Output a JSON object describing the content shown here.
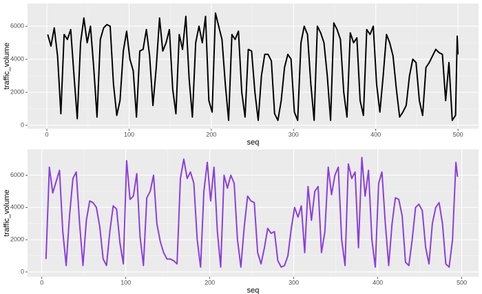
{
  "chart_data": [
    {
      "type": "line",
      "xlabel": "seq",
      "ylabel": "traffic_volume",
      "color": "#000000",
      "grid": true,
      "xlim": [
        -23.5,
        525
      ],
      "ylim": [
        -210,
        7380
      ],
      "xticks": [
        0,
        100,
        200,
        300,
        400,
        500
      ],
      "yticks": [
        0,
        2000,
        4000,
        6000
      ],
      "x": [
        1,
        5,
        9,
        13,
        17,
        21,
        25,
        29,
        33,
        37,
        41,
        45,
        49,
        53,
        57,
        61,
        65,
        69,
        73,
        77,
        81,
        85,
        89,
        93,
        97,
        101,
        105,
        109,
        113,
        117,
        121,
        125,
        129,
        133,
        137,
        141,
        145,
        149,
        153,
        157,
        161,
        165,
        169,
        173,
        177,
        181,
        185,
        189,
        193,
        197,
        201,
        205,
        209,
        213,
        217,
        221,
        225,
        229,
        233,
        237,
        241,
        245,
        249,
        253,
        257,
        261,
        265,
        269,
        273,
        277,
        281,
        285,
        289,
        293,
        297,
        301,
        305,
        309,
        313,
        317,
        321,
        325,
        329,
        333,
        337,
        341,
        345,
        349,
        353,
        357,
        361,
        365,
        369,
        373,
        377,
        381,
        385,
        389,
        393,
        397,
        401,
        405,
        409,
        413,
        417,
        421,
        425,
        429,
        433,
        437,
        441,
        445,
        449,
        453,
        457,
        461,
        465,
        469,
        473,
        477,
        481,
        485,
        489,
        493,
        497,
        499,
        500
      ],
      "values": [
        5500,
        4800,
        5900,
        4200,
        700,
        5500,
        5200,
        5800,
        3000,
        400,
        5000,
        6500,
        5000,
        6000,
        3500,
        500,
        5200,
        5900,
        6100,
        6000,
        2500,
        600,
        1500,
        4500,
        5700,
        4000,
        3300,
        500,
        4500,
        4600,
        5800,
        4200,
        1200,
        3500,
        6500,
        4500,
        5000,
        5800,
        2200,
        700,
        5500,
        4600,
        6600,
        2800,
        500,
        5000,
        6000,
        5000,
        6600,
        1500,
        800,
        6800,
        6000,
        5200,
        2500,
        300,
        5500,
        5200,
        5700,
        2000,
        500,
        4600,
        4500,
        2000,
        300,
        3000,
        4300,
        4300,
        3900,
        700,
        300,
        1500,
        3500,
        4300,
        4000,
        800,
        300,
        5000,
        6000,
        5500,
        2500,
        300,
        6000,
        5600,
        5000,
        3000,
        300,
        6200,
        5800,
        5200,
        2000,
        500,
        5600,
        5000,
        5300,
        1500,
        600,
        5800,
        5500,
        6000,
        2500,
        800,
        3000,
        5500,
        5000,
        4200,
        2200,
        500,
        800,
        1200,
        3000,
        4000,
        3800,
        1500,
        600,
        3500,
        3800,
        4200,
        4600,
        4400,
        4300,
        1500,
        3800,
        300,
        600,
        5400,
        4300
      ]
    },
    {
      "type": "line",
      "xlabel": "seq",
      "ylabel": "traffic_volume",
      "color": "#8b3de0",
      "grid": true,
      "xlim": [
        -17,
        520
      ],
      "ylim": [
        -300,
        7600
      ],
      "xticks": [
        0,
        100,
        200,
        300,
        400,
        500
      ],
      "yticks": [
        0,
        2000,
        4000,
        6000
      ],
      "x": [
        5,
        9,
        13,
        17,
        21,
        25,
        29,
        33,
        37,
        41,
        45,
        49,
        53,
        57,
        61,
        65,
        69,
        73,
        77,
        81,
        85,
        89,
        93,
        97,
        101,
        105,
        109,
        113,
        117,
        121,
        125,
        129,
        133,
        137,
        141,
        145,
        149,
        153,
        157,
        161,
        165,
        169,
        173,
        177,
        181,
        185,
        189,
        193,
        197,
        201,
        205,
        209,
        213,
        217,
        221,
        225,
        229,
        233,
        237,
        241,
        245,
        249,
        253,
        257,
        261,
        265,
        269,
        273,
        277,
        281,
        285,
        289,
        293,
        297,
        301,
        305,
        309,
        313,
        317,
        321,
        325,
        329,
        333,
        337,
        341,
        345,
        349,
        353,
        357,
        361,
        365,
        369,
        373,
        377,
        381,
        385,
        389,
        393,
        397,
        401,
        405,
        409,
        413,
        417,
        421,
        425,
        429,
        433,
        437,
        441,
        445,
        449,
        453,
        457,
        461,
        465,
        469,
        473,
        477,
        481,
        485,
        489,
        493,
        495
      ],
      "values": [
        800,
        6500,
        4900,
        5600,
        6300,
        2500,
        400,
        3500,
        5800,
        6200,
        3000,
        400,
        3200,
        4400,
        4300,
        4000,
        2800,
        800,
        400,
        2500,
        4100,
        3900,
        1800,
        500,
        6900,
        4500,
        4700,
        6100,
        2200,
        400,
        4600,
        5000,
        6000,
        3000,
        1900,
        1200,
        800,
        800,
        700,
        500,
        5800,
        7000,
        5800,
        6200,
        5500,
        2000,
        300,
        5000,
        6800,
        4400,
        6500,
        2500,
        300,
        6000,
        5200,
        6000,
        5500,
        2000,
        300,
        2800,
        4700,
        4400,
        4300,
        1200,
        500,
        1500,
        2700,
        2400,
        2500,
        700,
        300,
        400,
        1000,
        2700,
        4000,
        3400,
        4100,
        1200,
        5300,
        3200,
        5000,
        5300,
        1200,
        2500,
        6500,
        4800,
        6000,
        6500,
        2000,
        400,
        6700,
        5800,
        6200,
        1500,
        7100,
        4700,
        6300,
        2000,
        300,
        5500,
        6200,
        3000,
        400,
        3000,
        4600,
        4500,
        3500,
        600,
        400,
        2000,
        4000,
        4200,
        3800,
        1500,
        500,
        3000,
        4000,
        4300,
        3000,
        500,
        300,
        2000,
        6800,
        5900
      ]
    }
  ]
}
